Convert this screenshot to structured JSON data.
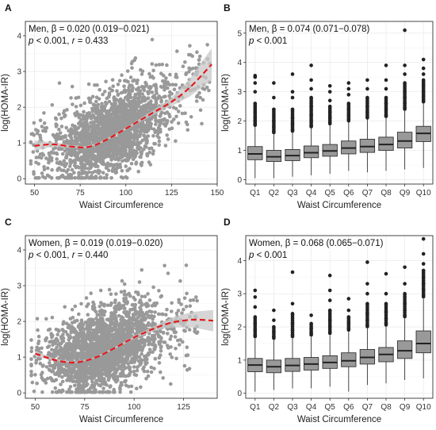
{
  "chart_data": [
    {
      "panel": "A",
      "type": "scatter",
      "xlabel": "Waist Circumference",
      "ylabel": "log(HOMA-IR)",
      "xlim": [
        45,
        150
      ],
      "ylim": [
        -0.15,
        4.4
      ],
      "xticks": [
        50,
        75,
        100,
        125,
        150
      ],
      "yticks": [
        0,
        1,
        2,
        3,
        4
      ],
      "grid": true,
      "annotation_line1": "Men, β = 0.020 (0.019−0.021)",
      "annotation_p": "p",
      "annotation_line2_rest": " < 0.001, r = 0.433",
      "cloud": {
        "x_range": [
          48,
          146
        ],
        "x_core": [
          60,
          125
        ],
        "y_center_at_x": [
          [
            50,
            0.75
          ],
          [
            75,
            0.9
          ],
          [
            100,
            1.4
          ],
          [
            125,
            2.1
          ],
          [
            146,
            3.1
          ]
        ],
        "color": "#999999"
      },
      "trend": {
        "color": "#e41a1c",
        "style": "dashed",
        "x": [
          50,
          60,
          70,
          78,
          85,
          95,
          105,
          115,
          125,
          135,
          147
        ],
        "y": [
          0.92,
          0.96,
          0.9,
          0.88,
          0.98,
          1.25,
          1.55,
          1.85,
          2.15,
          2.55,
          3.2
        ],
        "ci_halfwidth": [
          0.15,
          0.06,
          0.04,
          0.03,
          0.03,
          0.03,
          0.04,
          0.07,
          0.12,
          0.25,
          0.45
        ],
        "ci_color": "#c8c8c8"
      }
    },
    {
      "panel": "B",
      "type": "box",
      "xlabel": "Waist Circumference",
      "ylabel": "log(HOMA-IR)",
      "ylim": [
        -0.15,
        5.4
      ],
      "yticks": [
        0,
        1,
        2,
        3,
        4,
        5
      ],
      "grid": true,
      "annotation_line1": "Men, β = 0.074 (0.071−0.078)",
      "annotation_p": "p",
      "annotation_line2_rest": " < 0.001",
      "categories": [
        "Q1",
        "Q2",
        "Q3",
        "Q4",
        "Q5",
        "Q6",
        "Q7",
        "Q8",
        "Q9",
        "Q10"
      ],
      "box_color": "#999999",
      "boxes": [
        {
          "wlo": 0.05,
          "q1": 0.68,
          "med": 0.88,
          "q3": 1.13,
          "whi": 1.8,
          "outliers": [
            1.9,
            2.0,
            2.1,
            2.3,
            2.6,
            3.0,
            3.3,
            3.5,
            3.55
          ]
        },
        {
          "wlo": 0.05,
          "q1": 0.62,
          "med": 0.78,
          "q3": 1.0,
          "whi": 1.55,
          "outliers": [
            1.65,
            1.8,
            2.0,
            2.4,
            2.8,
            3.3
          ]
        },
        {
          "wlo": 0.1,
          "q1": 0.65,
          "med": 0.82,
          "q3": 1.03,
          "whi": 1.6,
          "outliers": [
            1.7,
            1.9,
            2.1,
            2.4,
            2.8,
            3.0,
            3.6
          ]
        },
        {
          "wlo": 0.15,
          "q1": 0.75,
          "med": 0.92,
          "q3": 1.15,
          "whi": 1.75,
          "outliers": [
            1.85,
            2.0,
            2.2,
            2.5,
            2.8,
            3.1,
            3.4,
            3.9
          ]
        },
        {
          "wlo": 0.2,
          "q1": 0.8,
          "med": 0.98,
          "q3": 1.2,
          "whi": 1.85,
          "outliers": [
            1.95,
            2.1,
            2.3,
            2.5,
            2.7,
            3.0,
            3.2
          ]
        },
        {
          "wlo": 0.3,
          "q1": 0.88,
          "med": 1.08,
          "q3": 1.32,
          "whi": 1.95,
          "outliers": [
            2.05,
            2.2,
            2.4,
            2.6,
            2.9,
            3.1,
            3.3
          ]
        },
        {
          "wlo": 0.25,
          "q1": 0.93,
          "med": 1.13,
          "q3": 1.38,
          "whi": 2.05,
          "outliers": [
            2.15,
            2.3,
            2.5,
            2.8,
            3.1,
            3.4
          ]
        },
        {
          "wlo": 0.3,
          "q1": 1.0,
          "med": 1.2,
          "q3": 1.45,
          "whi": 2.1,
          "outliers": [
            2.2,
            2.4,
            2.6,
            2.8,
            3.1,
            3.4,
            3.9
          ]
        },
        {
          "wlo": 0.35,
          "q1": 1.08,
          "med": 1.32,
          "q3": 1.62,
          "whi": 2.35,
          "outliers": [
            2.45,
            2.6,
            2.8,
            3.0,
            3.3,
            3.6,
            3.9,
            5.1
          ]
        },
        {
          "wlo": 0.4,
          "q1": 1.3,
          "med": 1.58,
          "q3": 1.82,
          "whi": 2.6,
          "outliers": [
            2.7,
            2.85,
            3.0,
            3.2,
            3.4,
            3.6,
            3.8,
            4.1
          ]
        }
      ]
    },
    {
      "panel": "C",
      "type": "scatter",
      "xlabel": "Waist Circumference",
      "ylabel": "log(HOMA-IR)",
      "xlim": [
        45,
        142
      ],
      "ylim": [
        -0.15,
        4.4
      ],
      "xticks": [
        50,
        75,
        100,
        125
      ],
      "yticks": [
        0,
        1,
        2,
        3,
        4
      ],
      "grid": true,
      "annotation_line1": "Women, β = 0.019 (0.019−0.020)",
      "annotation_p": "p",
      "annotation_line2_rest": " < 0.001, r = 0.440",
      "cloud": {
        "x_range": [
          48,
          132
        ],
        "x_core": [
          55,
          115
        ],
        "y_center_at_x": [
          [
            50,
            1.0
          ],
          [
            70,
            0.95
          ],
          [
            90,
            1.3
          ],
          [
            110,
            1.75
          ],
          [
            130,
            2.0
          ]
        ],
        "color": "#999999"
      },
      "trend": {
        "color": "#e41a1c",
        "style": "dashed",
        "x": [
          50,
          60,
          70,
          80,
          90,
          100,
          110,
          115,
          120,
          130,
          140
        ],
        "y": [
          1.1,
          0.92,
          0.85,
          0.98,
          1.25,
          1.55,
          1.8,
          1.9,
          1.98,
          2.05,
          2.02
        ],
        "ci_halfwidth": [
          0.08,
          0.03,
          0.02,
          0.02,
          0.03,
          0.04,
          0.07,
          0.1,
          0.15,
          0.22,
          0.3
        ],
        "ci_color": "#c8c8c8"
      }
    },
    {
      "panel": "D",
      "type": "box",
      "xlabel": "Waist Circumference",
      "ylabel": "log(HOMA-IR)",
      "ylim": [
        -0.15,
        4.75
      ],
      "yticks": [
        0,
        1,
        2,
        3,
        4
      ],
      "grid": true,
      "annotation_line1": "Women, β = 0.068 (0.065−0.071)",
      "annotation_p": "p",
      "annotation_line2_rest": " < 0.001",
      "categories": [
        "Q1",
        "Q2",
        "Q3",
        "Q4",
        "Q5",
        "Q6",
        "Q7",
        "Q8",
        "Q9",
        "Q10"
      ],
      "box_color": "#999999",
      "boxes": [
        {
          "wlo": 0.05,
          "q1": 0.65,
          "med": 0.85,
          "q3": 1.05,
          "whi": 1.65,
          "outliers": [
            1.75,
            1.9,
            2.1,
            2.3,
            2.6,
            2.9,
            3.1
          ]
        },
        {
          "wlo": 0.1,
          "q1": 0.62,
          "med": 0.8,
          "q3": 1.0,
          "whi": 1.6,
          "outliers": [
            1.7,
            1.85,
            2.0,
            2.2,
            2.5
          ]
        },
        {
          "wlo": 0.15,
          "q1": 0.66,
          "med": 0.84,
          "q3": 1.05,
          "whi": 1.65,
          "outliers": [
            1.75,
            1.9,
            2.1,
            2.4,
            2.7,
            3.65
          ]
        },
        {
          "wlo": 0.15,
          "q1": 0.7,
          "med": 0.88,
          "q3": 1.08,
          "whi": 1.7,
          "outliers": [
            1.8,
            1.95,
            2.1,
            2.35
          ]
        },
        {
          "wlo": 0.2,
          "q1": 0.75,
          "med": 0.93,
          "q3": 1.13,
          "whi": 1.75,
          "outliers": [
            1.85,
            2.0,
            2.2,
            2.5,
            2.8,
            3.1,
            3.55
          ]
        },
        {
          "wlo": 0.05,
          "q1": 0.8,
          "med": 0.98,
          "q3": 1.22,
          "whi": 1.85,
          "outliers": [
            1.95,
            2.1,
            2.3,
            2.5,
            2.85
          ]
        },
        {
          "wlo": 0.25,
          "q1": 0.88,
          "med": 1.08,
          "q3": 1.32,
          "whi": 1.95,
          "outliers": [
            2.05,
            2.2,
            2.4,
            2.7,
            3.0,
            3.3,
            3.95
          ]
        },
        {
          "wlo": 0.3,
          "q1": 0.95,
          "med": 1.17,
          "q3": 1.38,
          "whi": 2.0,
          "outliers": [
            2.1,
            2.25,
            2.45,
            2.7,
            3.0,
            3.6
          ]
        },
        {
          "wlo": 0.4,
          "q1": 1.05,
          "med": 1.28,
          "q3": 1.58,
          "whi": 2.25,
          "outliers": [
            2.35,
            2.5,
            2.7,
            3.0,
            3.3,
            3.8
          ]
        },
        {
          "wlo": 0.45,
          "q1": 1.22,
          "med": 1.5,
          "q3": 1.88,
          "whi": 2.85,
          "outliers": [
            2.95,
            3.1,
            3.3,
            3.5,
            3.7,
            3.9,
            4.2,
            4.65
          ]
        }
      ]
    }
  ]
}
